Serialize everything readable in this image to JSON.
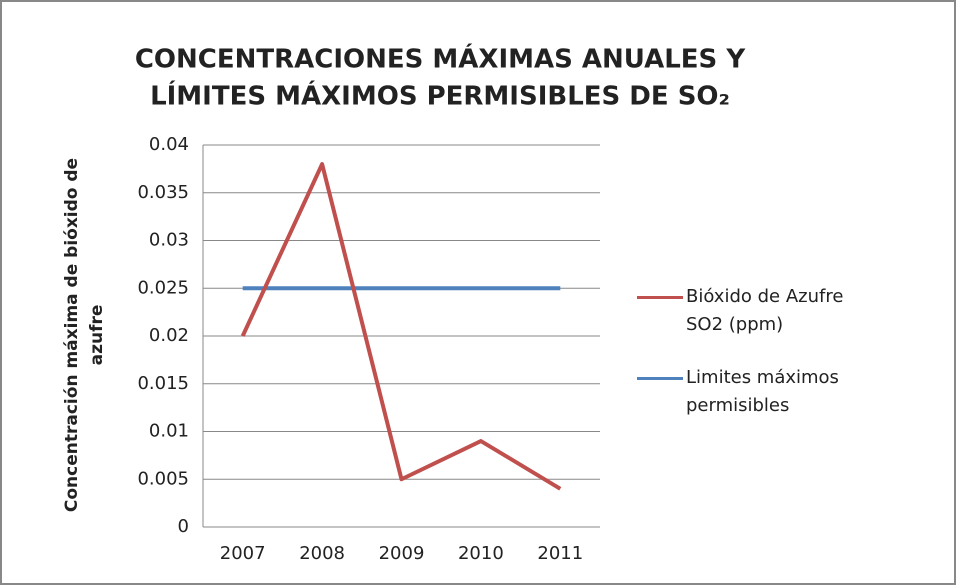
{
  "chart_data": {
    "type": "line",
    "title": [
      "CONCENTRACIONES MÁXIMAS ANUALES Y",
      "LÍMITES MÁXIMOS PERMISIBLES DE SO₂"
    ],
    "y_label": [
      "Concentración máxima de bióxido de",
      "azufre"
    ],
    "categories": [
      "2007",
      "2008",
      "2009",
      "2010",
      "2011"
    ],
    "series": [
      {
        "name": "Bióxido de Azufre SO2 (ppm)",
        "color": "#c0504d",
        "values": [
          0.02,
          0.038,
          0.005,
          0.009,
          0.004
        ]
      },
      {
        "name": "Limites máximos permisibles",
        "color": "#4f81bd",
        "values": [
          0.025,
          0.025,
          0.025,
          0.025,
          0.025
        ]
      }
    ],
    "ylim": [
      0,
      0.04
    ],
    "yticks": [
      0,
      0.005,
      0.01,
      0.015,
      0.02,
      0.025,
      0.03,
      0.035,
      0.04
    ],
    "grid": true,
    "legend": "right"
  }
}
